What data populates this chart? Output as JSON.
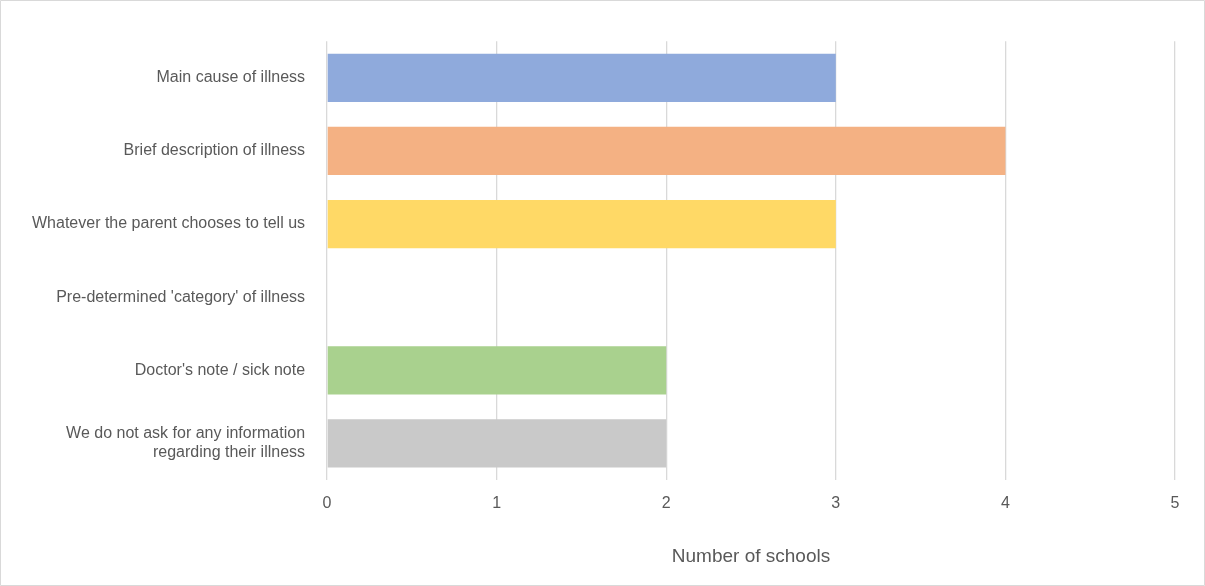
{
  "chart_data": {
    "type": "bar",
    "orientation": "horizontal",
    "categories": [
      "Main cause of illness",
      "Brief description of illness",
      "Whatever the parent chooses to tell us",
      "Pre-determined 'category' of illness",
      "Doctor's note / sick note",
      "We do not ask for any information regarding their illness"
    ],
    "values": [
      3,
      4,
      3,
      0,
      2,
      2
    ],
    "colors": [
      "#8faadc",
      "#f4b183",
      "#ffd966",
      "#9dc3e6",
      "#a9d18e",
      "#c9c9c9"
    ],
    "xlabel": "Number of schools",
    "xlim": [
      0,
      5
    ],
    "xticks": [
      0,
      1,
      2,
      3,
      4,
      5
    ],
    "grid": "x"
  }
}
